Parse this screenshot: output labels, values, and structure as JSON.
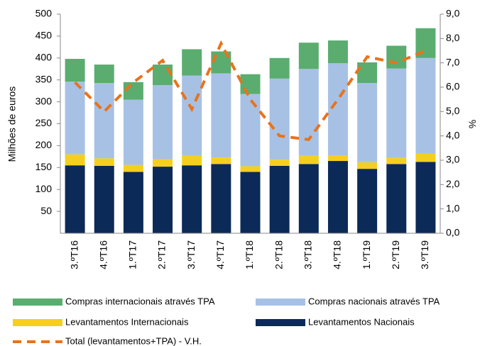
{
  "chart_data": {
    "type": "bar",
    "stacked": true,
    "y_label": "Milhões de euros",
    "y2_label": "%",
    "categories": [
      "3.ºT16",
      "4.ºT16",
      "1.ºT17",
      "2.ºT17",
      "3.ºT17",
      "4.ºT17",
      "1.ºT18",
      "2.ºT18",
      "3.ºT18",
      "4.ºT18",
      "1.ºT19",
      "2.ºT19",
      "3.ºT19"
    ],
    "series": [
      {
        "name": "Levantamentos Nacionais",
        "color": "#0b2a57",
        "values": [
          155,
          154,
          140,
          152,
          155,
          158,
          140,
          154,
          158,
          165,
          147,
          158,
          163
        ]
      },
      {
        "name": "Levantamentos Internacionais",
        "color": "#f5cf1f",
        "values": [
          25,
          17,
          16,
          17,
          22,
          15,
          13,
          14,
          19,
          13,
          15,
          14,
          19
        ]
      },
      {
        "name": "Compras nacionais através TPA",
        "color": "#a7c1e5",
        "values": [
          166,
          172,
          149,
          169,
          183,
          192,
          165,
          185,
          198,
          210,
          181,
          204,
          218
        ]
      },
      {
        "name": "Compras internacionais através TPA",
        "color": "#5aad6f",
        "values": [
          52,
          42,
          40,
          47,
          60,
          50,
          45,
          47,
          60,
          52,
          47,
          52,
          68
        ]
      },
      {
        "name": "Total (levantamentos+TPA) - V.H.",
        "color": "#e8731c",
        "type": "line",
        "axis": "y2",
        "values": [
          6.2,
          5.0,
          6.2,
          7.1,
          5.1,
          7.8,
          5.5,
          4.0,
          3.85,
          5.5,
          7.25,
          7.0,
          7.5
        ]
      }
    ],
    "ylim": [
      0,
      500
    ],
    "yticks": [
      50,
      100,
      150,
      200,
      250,
      300,
      350,
      400,
      450,
      500
    ],
    "y2lim": [
      0,
      9
    ],
    "y2ticks": [
      {
        "value": 0,
        "label": "0,0"
      },
      {
        "value": 1,
        "label": "1,0"
      },
      {
        "value": 2,
        "label": "2,0"
      },
      {
        "value": 3,
        "label": "3,0"
      },
      {
        "value": 4,
        "label": "4,0"
      },
      {
        "value": 5,
        "label": "5,0"
      },
      {
        "value": 6,
        "label": "6,0"
      },
      {
        "value": 7,
        "label": "7,0"
      },
      {
        "value": 8,
        "label": "8,0"
      },
      {
        "value": 9,
        "label": "9,0"
      }
    ],
    "legend": "bottom"
  }
}
